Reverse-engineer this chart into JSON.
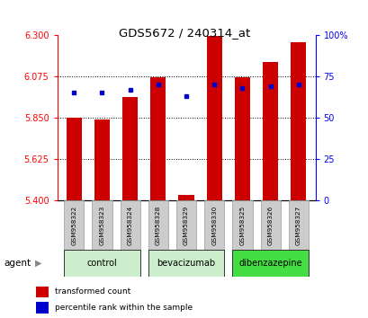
{
  "title": "GDS5672 / 240314_at",
  "samples": [
    "GSM958322",
    "GSM958323",
    "GSM958324",
    "GSM958328",
    "GSM958329",
    "GSM958330",
    "GSM958325",
    "GSM958326",
    "GSM958327"
  ],
  "transformed_counts": [
    5.85,
    5.84,
    5.96,
    6.07,
    5.43,
    6.295,
    6.07,
    6.155,
    6.26
  ],
  "percentile_ranks": [
    65,
    65,
    67,
    70,
    63,
    70,
    68,
    69,
    70
  ],
  "groups": [
    {
      "label": "control",
      "indices": [
        0,
        1,
        2
      ],
      "color": "#cceecc"
    },
    {
      "label": "bevacizumab",
      "indices": [
        3,
        4,
        5
      ],
      "color": "#cceecc"
    },
    {
      "label": "dibenzazepine",
      "indices": [
        6,
        7,
        8
      ],
      "color": "#44dd44"
    }
  ],
  "ylim_left": [
    5.4,
    6.3
  ],
  "ylim_right": [
    0,
    100
  ],
  "yticks_left": [
    5.4,
    5.625,
    5.85,
    6.075,
    6.3
  ],
  "yticks_right": [
    0,
    25,
    50,
    75,
    100
  ],
  "bar_color": "#cc0000",
  "percentile_color": "#0000cc",
  "bar_width": 0.55,
  "background_color": "#ffffff",
  "agent_label": "agent",
  "box_color": "#cccccc",
  "box_edge_color": "#999999"
}
